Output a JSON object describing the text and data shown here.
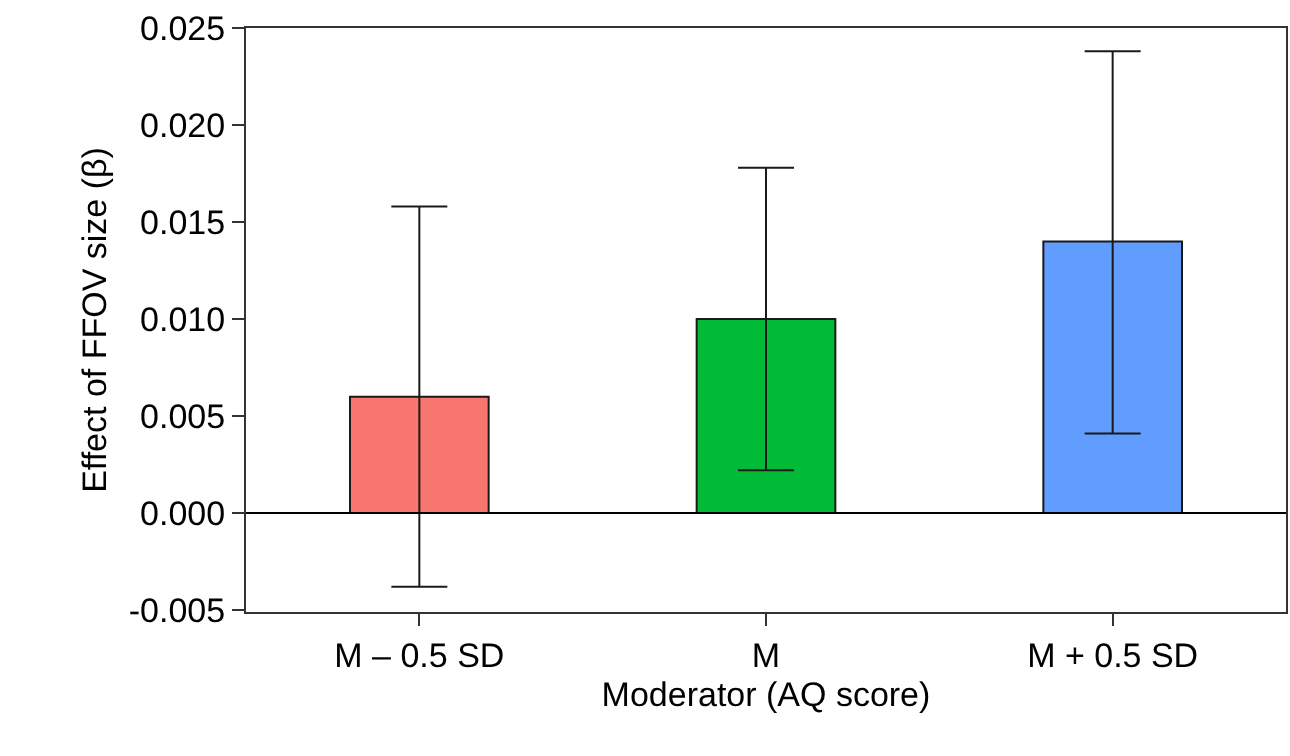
{
  "chart_data": {
    "type": "bar",
    "xlabel": "Moderator (AQ score)",
    "ylabel": "Effect of FFOV size (β)",
    "categories": [
      "M – 0.5 SD",
      "M",
      "M + 0.5 SD"
    ],
    "values": [
      0.006,
      0.01,
      0.014
    ],
    "colors": [
      "#f8766d",
      "#00ba38",
      "#619cff"
    ],
    "errors": [
      [
        -0.0038,
        0.0158
      ],
      [
        0.0022,
        0.0178
      ],
      [
        0.0041,
        0.0238
      ]
    ],
    "ylim": [
      -0.0051,
      0.025
    ],
    "yticks": [
      {
        "value": -0.005,
        "label": "-0.005"
      },
      {
        "value": 0,
        "label": "0.000"
      },
      {
        "value": 0.005,
        "label": "0.005"
      },
      {
        "value": 0.01,
        "label": "0.010"
      },
      {
        "value": 0.015,
        "label": "0.015"
      },
      {
        "value": 0.02,
        "label": "0.020"
      },
      {
        "value": 0.025,
        "label": "0.025"
      }
    ],
    "ref_lines": [
      {
        "axis": "y",
        "value": 0,
        "color": "#000000"
      }
    ],
    "grid": false
  }
}
